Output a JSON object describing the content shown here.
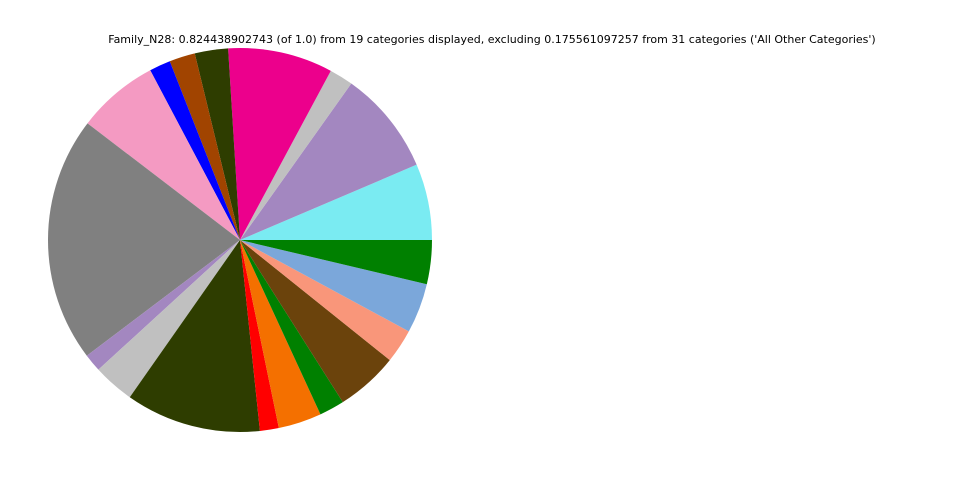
{
  "chart_data": {
    "type": "pie",
    "title": "Family_N28: 0.824438902743 (of 1.0) from 19 categories displayed, excluding 0.175561097257 from 31 categories ('All Other Categories')",
    "values": [
      0.0529,
      0.0721,
      0.0165,
      0.0728,
      0.0231,
      0.0179,
      0.0147,
      0.0566,
      0.1706,
      0.0124,
      0.0286,
      0.0939,
      0.0131,
      0.03,
      0.0174,
      0.0433,
      0.0236,
      0.0346,
      0.0305
    ],
    "colors": [
      "#7aebf2",
      "#a387c0",
      "#c0c0c0",
      "#ec008c",
      "#2e3d00",
      "#a14400",
      "#0000ff",
      "#f49ac2",
      "#808080",
      "#a387c0",
      "#c0c0c0",
      "#2e3d00",
      "#ff0000",
      "#f47000",
      "#008000",
      "#6b430c",
      "#f9967a",
      "#7ba7da",
      "#008000"
    ]
  }
}
